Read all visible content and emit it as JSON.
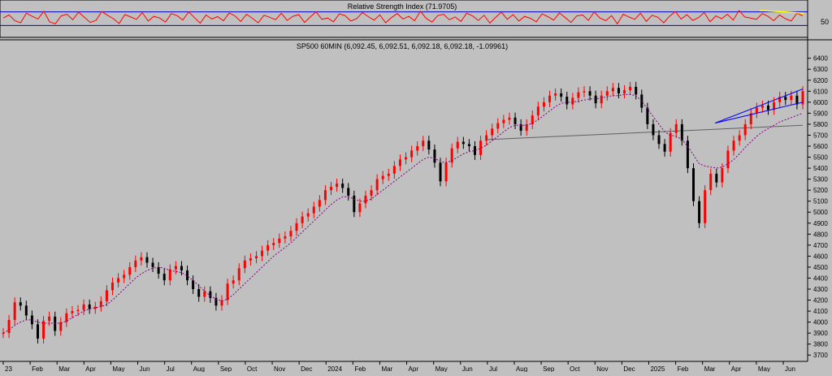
{
  "colors": {
    "background": "#c0c0c0",
    "rsi_line": "#ff0000",
    "rsi_levels": "#0000cc",
    "rsi_trendline": "#ffff00",
    "price_up": "#ff0000",
    "price_down": "#000000",
    "moving_average": "#800080",
    "channel_lines": "#0000ff",
    "support_line": "#606060",
    "axis_text": "#000000"
  },
  "chart_data": [
    {
      "type": "line",
      "panel": "indicator",
      "title": "Relative Strength Index (71.9705)",
      "y_tick_labels": [
        "50"
      ],
      "levels": [
        70,
        30
      ],
      "ylim": [
        0,
        100
      ],
      "series": [
        {
          "values": [
            52,
            61,
            44,
            38,
            66,
            57,
            49,
            72,
            41,
            35,
            58,
            63,
            47,
            69,
            54,
            39,
            45,
            71,
            60,
            50,
            36,
            62,
            55,
            48,
            68,
            43,
            57,
            52,
            40,
            65,
            59,
            46,
            70,
            53,
            37,
            61,
            49,
            56,
            44,
            67,
            58,
            42,
            63,
            51,
            38,
            60,
            54,
            47,
            66,
            45,
            57,
            62,
            39,
            55,
            70,
            48,
            52,
            41,
            64,
            59,
            43,
            50,
            68,
            56,
            46,
            61,
            38,
            53,
            65,
            49,
            57,
            44,
            72,
            51,
            40,
            59,
            63,
            47,
            55,
            42,
            66,
            58,
            45,
            60,
            37,
            54,
            69,
            48,
            62,
            43,
            57,
            51,
            41,
            64,
            56,
            46,
            67,
            53,
            39,
            58,
            61,
            45,
            70,
            52,
            44,
            59,
            35,
            63,
            55,
            48,
            66,
            42,
            60,
            54,
            38,
            57,
            71,
            49,
            62,
            45,
            53,
            68,
            41,
            58,
            50,
            63,
            46,
            74,
            55,
            52,
            48,
            65,
            57,
            44,
            61,
            50,
            43,
            66,
            58
          ]
        }
      ],
      "annotations": [
        {
          "kind": "trendline",
          "color": "yellow"
        }
      ]
    },
    {
      "type": "line",
      "panel": "price",
      "title": "SP500 60MIN (6,092.45, 6,092.51, 6,092.18, 6,092.18, -1.09961)",
      "x_tick_labels": [
        "23",
        "Feb",
        "Mar",
        "Apr",
        "May",
        "Jun",
        "Jul",
        "Aug",
        "Sep",
        "Oct",
        "Nov",
        "Dec",
        "2024",
        "Feb",
        "Mar",
        "Apr",
        "May",
        "Jun",
        "Jul",
        "Aug",
        "Sep",
        "Oct",
        "Nov",
        "Dec",
        "2025",
        "Feb",
        "Mar",
        "Apr",
        "May",
        "Jun"
      ],
      "y_ticks": [
        3700,
        3800,
        3900,
        4000,
        4100,
        4200,
        4300,
        4400,
        4500,
        4600,
        4700,
        4800,
        4900,
        5000,
        5100,
        5200,
        5300,
        5400,
        5500,
        5600,
        5700,
        5800,
        5900,
        6000,
        6100,
        6200,
        6300,
        6400
      ],
      "ylim": [
        3650,
        6420
      ],
      "series": [
        {
          "values": [
            3900,
            4020,
            4180,
            4150,
            4060,
            3980,
            3850,
            4010,
            4050,
            3920,
            4000,
            4080,
            4100,
            4110,
            4160,
            4120,
            4140,
            4190,
            4290,
            4360,
            4400,
            4430,
            4500,
            4560,
            4590,
            4540,
            4500,
            4440,
            4380,
            4480,
            4510,
            4470,
            4380,
            4300,
            4230,
            4280,
            4220,
            4150,
            4200,
            4350,
            4380,
            4490,
            4560,
            4580,
            4600,
            4650,
            4700,
            4720,
            4760,
            4780,
            4830,
            4900,
            4960,
            4990,
            5050,
            5110,
            5200,
            5230,
            5260,
            5220,
            5150,
            5000,
            5080,
            5150,
            5200,
            5300,
            5330,
            5350,
            5420,
            5480,
            5500,
            5560,
            5600,
            5650,
            5570,
            5450,
            5280,
            5450,
            5580,
            5640,
            5620,
            5600,
            5520,
            5650,
            5700,
            5760,
            5810,
            5840,
            5860,
            5800,
            5740,
            5800,
            5880,
            5960,
            6000,
            6060,
            6080,
            6050,
            5980,
            6040,
            6090,
            6100,
            6060,
            5990,
            6060,
            6100,
            6130,
            6080,
            6110,
            6140,
            6070,
            5950,
            5800,
            5700,
            5620,
            5550,
            5720,
            5800,
            5650,
            5400,
            5100,
            4900,
            5200,
            5350,
            5270,
            5400,
            5560,
            5650,
            5700,
            5800,
            5900,
            5950,
            5970,
            5930,
            6000,
            6050,
            6020,
            6060,
            5980,
            6100
          ]
        },
        {
          "values": [
            3900,
            3930,
            3970,
            4000,
            4020,
            4020,
            4000,
            3990,
            3990,
            3990,
            3990,
            4010,
            4040,
            4070,
            4100,
            4120,
            4130,
            4140,
            4160,
            4200,
            4250,
            4300,
            4350,
            4400,
            4440,
            4470,
            4490,
            4500,
            4490,
            4470,
            4460,
            4450,
            4420,
            4380,
            4330,
            4280,
            4240,
            4210,
            4190,
            4210,
            4250,
            4300,
            4350,
            4400,
            4450,
            4500,
            4550,
            4600,
            4640,
            4680,
            4720,
            4770,
            4820,
            4870,
            4920,
            4970,
            5020,
            5070,
            5110,
            5140,
            5140,
            5120,
            5100,
            5100,
            5120,
            5160,
            5200,
            5240,
            5280,
            5320,
            5360,
            5400,
            5440,
            5480,
            5500,
            5490,
            5460,
            5450,
            5470,
            5500,
            5530,
            5550,
            5560,
            5580,
            5610,
            5650,
            5690,
            5730,
            5770,
            5790,
            5790,
            5790,
            5810,
            5840,
            5880,
            5920,
            5960,
            5990,
            6000,
            6000,
            6010,
            6020,
            6030,
            6030,
            6040,
            6050,
            6060,
            6060,
            6070,
            6070,
            6060,
            6010,
            5940,
            5870,
            5800,
            5730,
            5700,
            5690,
            5660,
            5600,
            5520,
            5440,
            5420,
            5410,
            5400,
            5410,
            5440,
            5480,
            5530,
            5590,
            5640,
            5690,
            5730,
            5760,
            5790,
            5820,
            5840,
            5860,
            5880,
            5900
          ]
        }
      ],
      "annotations": [
        {
          "kind": "support_line",
          "y": [
            5660,
            5790
          ]
        },
        {
          "kind": "channel_upper",
          "y": [
            5810,
            6120
          ]
        },
        {
          "kind": "channel_lower",
          "y": [
            5810,
            6000
          ]
        }
      ]
    }
  ]
}
